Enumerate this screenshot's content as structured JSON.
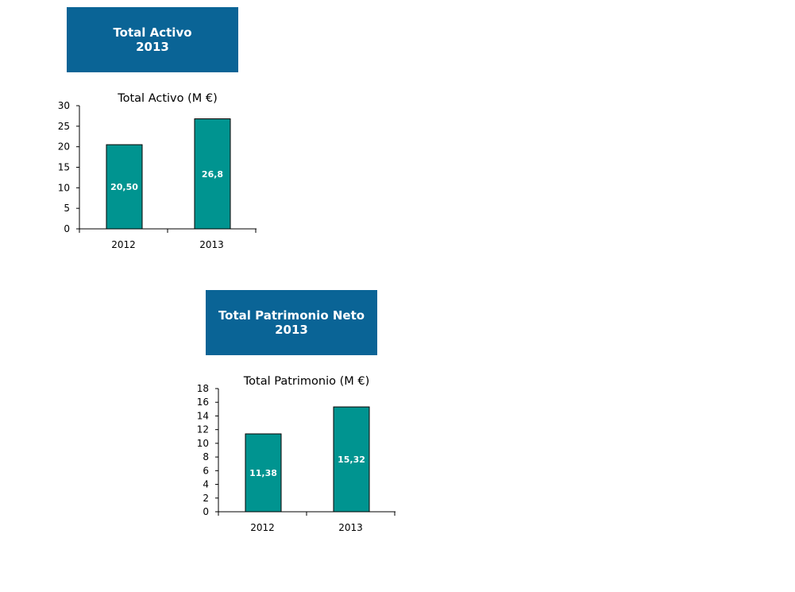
{
  "banners": [
    {
      "line1": "Total Activo",
      "line2": "2013"
    },
    {
      "line1": "Total Patrimonio Neto",
      "line2": "2013"
    }
  ],
  "colors": {
    "banner": "#0a6496",
    "bar": "#009490",
    "bar_stroke": "#000000"
  },
  "chart_data": [
    {
      "type": "bar",
      "title": "Total Activo (M €)",
      "categories": [
        "2012",
        "2013"
      ],
      "values": [
        20.5,
        26.8
      ],
      "data_labels": [
        "20,50",
        "26,8"
      ],
      "ylim": [
        0,
        30
      ],
      "yticks": [
        0,
        5,
        10,
        15,
        20,
        25,
        30
      ],
      "xlabel": "",
      "ylabel": "",
      "grid": false,
      "legend": "none"
    },
    {
      "type": "bar",
      "title": "Total Patrimonio (M €)",
      "categories": [
        "2012",
        "2013"
      ],
      "values": [
        11.38,
        15.32
      ],
      "data_labels": [
        "11,38",
        "15,32"
      ],
      "ylim": [
        0,
        18
      ],
      "yticks": [
        0,
        2,
        4,
        6,
        8,
        10,
        12,
        14,
        16,
        18
      ],
      "xlabel": "",
      "ylabel": "",
      "grid": false,
      "legend": "none"
    }
  ]
}
